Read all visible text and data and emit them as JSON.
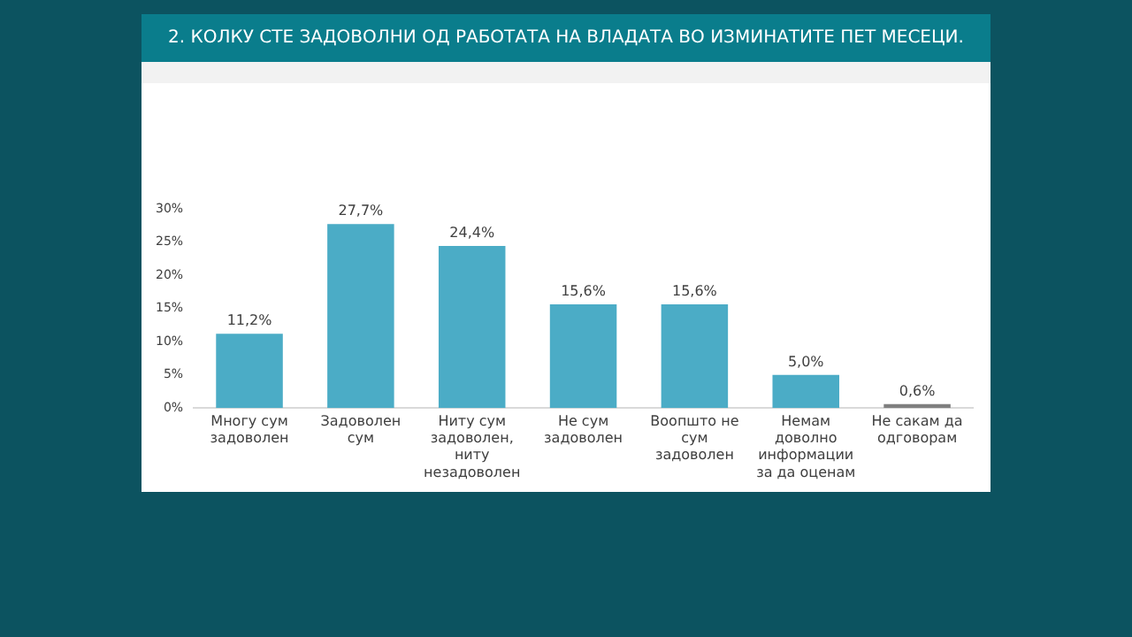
{
  "chart_data": {
    "type": "bar",
    "title": "2. КОЛКУ СТЕ ЗАДОВОЛНИ ОД РАБОТАТА НА ВЛАДАТА ВО ИЗМИНАТИТЕ ПЕТ МЕСЕЦИ.",
    "categories": [
      "Многу сум задоволен",
      "Задоволен сум",
      "Ниту сум задоволен, ниту незадоволен",
      "Не сум задоволен",
      "Воопшто не сум задоволен",
      "Немам доволно информации за да оценам",
      "Не сакам да одговорам"
    ],
    "values": [
      11.2,
      27.7,
      24.4,
      15.6,
      15.6,
      5.0,
      0.6
    ],
    "colors": [
      "#4bacc6",
      "#4bacc6",
      "#4bacc6",
      "#4bacc6",
      "#4bacc6",
      "#4bacc6",
      "#7f7f7f"
    ],
    "value_labels": [
      "11,2%",
      "27,7%",
      "24,4%",
      "15,6%",
      "15,6%",
      "5,0%",
      "0,6%"
    ],
    "ylim": [
      0,
      30
    ],
    "yticks": [
      {
        "value": 0,
        "label": "0%"
      },
      {
        "value": 5,
        "label": "5%"
      },
      {
        "value": 10,
        "label": "10%"
      },
      {
        "value": 15,
        "label": "15%"
      },
      {
        "value": 20,
        "label": "20%"
      },
      {
        "value": 25,
        "label": "25%"
      },
      {
        "value": 30,
        "label": "30%"
      }
    ],
    "grid": false,
    "legend": false
  }
}
